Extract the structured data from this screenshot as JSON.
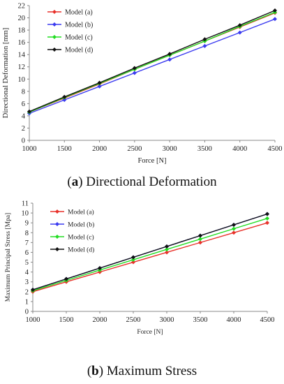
{
  "chart_data": [
    {
      "type": "line",
      "title": "",
      "xlabel": "Force [N]",
      "ylabel": "Directional Deformation [mm]",
      "x": [
        1000,
        1500,
        2000,
        2500,
        3000,
        3500,
        4000,
        4500
      ],
      "xlim": [
        1000,
        4500
      ],
      "ylim": [
        0,
        22
      ],
      "xticks": [
        1000,
        1500,
        2000,
        2500,
        3000,
        3500,
        4000,
        4500
      ],
      "yticks": [
        0,
        2,
        4,
        6,
        8,
        10,
        12,
        14,
        16,
        18,
        20,
        22
      ],
      "grid": false,
      "legend_position": "top-left",
      "series": [
        {
          "name": "Model (a)",
          "color": "#e8312a",
          "values": [
            4.6,
            6.9,
            9.2,
            11.6,
            13.9,
            16.2,
            18.5,
            20.8
          ]
        },
        {
          "name": "Model (b)",
          "color": "#3b3bf0",
          "values": [
            4.4,
            6.6,
            8.8,
            11.0,
            13.2,
            15.4,
            17.6,
            19.8
          ]
        },
        {
          "name": "Model (c)",
          "color": "#22dd22",
          "values": [
            4.6,
            7.0,
            9.3,
            11.6,
            13.9,
            16.2,
            18.6,
            20.9
          ]
        },
        {
          "name": "Model (d)",
          "color": "#111111",
          "values": [
            4.7,
            7.1,
            9.4,
            11.8,
            14.1,
            16.5,
            18.8,
            21.2
          ]
        }
      ]
    },
    {
      "type": "line",
      "title": "",
      "xlabel": "Force [N]",
      "ylabel": "Maximum Principal Stress [Mpa]",
      "x": [
        1000,
        1500,
        2000,
        2500,
        3000,
        3500,
        4000,
        4500
      ],
      "xlim": [
        1000,
        4500
      ],
      "ylim": [
        0,
        11
      ],
      "xticks": [
        1000,
        1500,
        2000,
        2500,
        3000,
        3500,
        4000,
        4500
      ],
      "yticks": [
        0,
        1,
        2,
        3,
        4,
        5,
        6,
        7,
        8,
        9,
        10,
        11
      ],
      "grid": false,
      "legend_position": "top-left",
      "series": [
        {
          "name": "Model (a)",
          "color": "#e8312a",
          "values": [
            2.0,
            3.0,
            4.0,
            5.0,
            6.0,
            7.0,
            8.0,
            9.0
          ]
        },
        {
          "name": "Model (b)",
          "color": "#3b3bf0",
          "values": [
            2.2,
            3.3,
            4.4,
            5.5,
            6.6,
            7.7,
            8.8,
            9.9
          ]
        },
        {
          "name": "Model (c)",
          "color": "#22dd22",
          "values": [
            2.1,
            3.15,
            4.2,
            5.25,
            6.3,
            7.35,
            8.4,
            9.45
          ]
        },
        {
          "name": "Model (d)",
          "color": "#111111",
          "values": [
            2.2,
            3.3,
            4.4,
            5.5,
            6.6,
            7.7,
            8.8,
            9.9
          ]
        }
      ]
    }
  ],
  "captions": [
    {
      "letter": "a",
      "open": "(",
      "close": ")",
      "text": " Directional Deformation"
    },
    {
      "letter": "b",
      "open": "(",
      "close": ")",
      "text": " Maximum Stress"
    }
  ]
}
